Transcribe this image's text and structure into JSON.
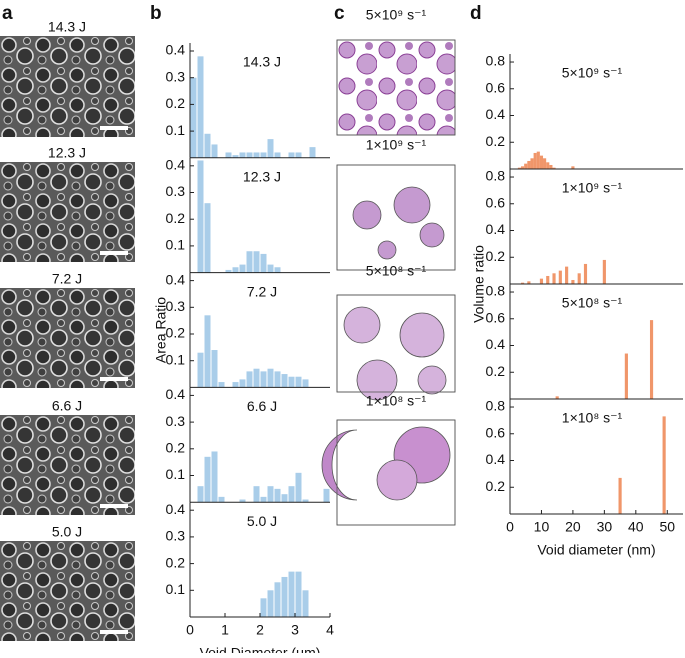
{
  "panel_labels": [
    "a",
    "b",
    "c",
    "d"
  ],
  "micrographs": [
    "14.3 J",
    "12.3 J",
    "7.2 J",
    "6.6 J",
    "5.0 J"
  ],
  "renderings": [
    "5×10⁹ s⁻¹",
    "1×10⁹ s⁻¹",
    "5×10⁸ s⁻¹",
    "1×10⁸ s⁻¹"
  ],
  "chart_data": [
    {
      "type": "histogram",
      "title": "14.3 J",
      "color": "#a9cde9",
      "bins": [
        0,
        0.2,
        0.4,
        0.6,
        0.8,
        1,
        1.2,
        1.4,
        1.6,
        1.8,
        2,
        2.2,
        2.4,
        2.6,
        2.8,
        3,
        3.2,
        3.4,
        3.6,
        3.8,
        4
      ],
      "values": [
        0.3,
        0.38,
        0.09,
        0.05,
        0,
        0.02,
        0.01,
        0.02,
        0.02,
        0.02,
        0.02,
        0.07,
        0.02,
        0,
        0.02,
        0.02,
        0,
        0.04,
        0,
        0
      ],
      "xlim": [
        0,
        4
      ],
      "ylim": [
        0,
        0.43
      ],
      "yticks": [
        0.1,
        0.2,
        0.3,
        0.4
      ]
    },
    {
      "type": "histogram",
      "title": "12.3 J",
      "color": "#a9cde9",
      "bins": [
        0,
        0.2,
        0.4,
        0.6,
        0.8,
        1,
        1.2,
        1.4,
        1.6,
        1.8,
        2,
        2.2,
        2.4,
        2.6,
        2.8,
        3,
        3.2,
        3.4,
        3.6,
        3.8,
        4
      ],
      "values": [
        0,
        0.42,
        0.26,
        0,
        0,
        0.01,
        0.02,
        0.03,
        0.08,
        0.08,
        0.07,
        0.03,
        0.02,
        0,
        0,
        0,
        0,
        0,
        0,
        0
      ],
      "xlim": [
        0,
        4
      ],
      "ylim": [
        0,
        0.43
      ],
      "yticks": [
        0.1,
        0.2,
        0.3,
        0.4
      ]
    },
    {
      "type": "histogram",
      "title": "7.2 J",
      "color": "#a9cde9",
      "bins": [
        0,
        0.2,
        0.4,
        0.6,
        0.8,
        1,
        1.2,
        1.4,
        1.6,
        1.8,
        2,
        2.2,
        2.4,
        2.6,
        2.8,
        3,
        3.2,
        3.4,
        3.6,
        3.8,
        4
      ],
      "values": [
        0,
        0.13,
        0.27,
        0.14,
        0.02,
        0,
        0.02,
        0.03,
        0.06,
        0.07,
        0.06,
        0.07,
        0.06,
        0.05,
        0.04,
        0.04,
        0.03,
        0,
        0,
        0
      ],
      "xlim": [
        0,
        4
      ],
      "ylim": [
        0,
        0.43
      ],
      "yticks": [
        0.1,
        0.2,
        0.3,
        0.4
      ],
      "ylabel": "Area Ratio"
    },
    {
      "type": "histogram",
      "title": "6.6 J",
      "color": "#a9cde9",
      "bins": [
        0,
        0.2,
        0.4,
        0.6,
        0.8,
        1,
        1.2,
        1.4,
        1.6,
        1.8,
        2,
        2.2,
        2.4,
        2.6,
        2.8,
        3,
        3.2,
        3.4,
        3.6,
        3.8,
        4
      ],
      "values": [
        0,
        0.06,
        0.17,
        0.19,
        0.02,
        0,
        0,
        0.01,
        0,
        0.06,
        0.02,
        0.06,
        0.05,
        0.03,
        0.06,
        0.11,
        0.01,
        0,
        0,
        0.05
      ],
      "xlim": [
        0,
        4
      ],
      "ylim": [
        0,
        0.43
      ],
      "yticks": [
        0.1,
        0.2,
        0.3,
        0.4
      ]
    },
    {
      "type": "histogram",
      "title": "5.0 J",
      "color": "#a9cde9",
      "bins": [
        0,
        0.2,
        0.4,
        0.6,
        0.8,
        1,
        1.2,
        1.4,
        1.6,
        1.8,
        2,
        2.2,
        2.4,
        2.6,
        2.8,
        3,
        3.2,
        3.4,
        3.6,
        3.8,
        4
      ],
      "values": [
        0,
        0,
        0,
        0,
        0,
        0,
        0,
        0,
        0,
        0,
        0.07,
        0.1,
        0.13,
        0.15,
        0.17,
        0.17,
        0.1,
        0,
        0,
        0
      ],
      "xlim": [
        0,
        4
      ],
      "ylim": [
        0,
        0.43
      ],
      "yticks": [
        0.1,
        0.2,
        0.3,
        0.4
      ],
      "xticks": [
        0,
        1,
        2,
        3,
        4
      ],
      "xlabel": "Void Diameter (μm)"
    },
    {
      "type": "bar",
      "title": "5×10⁹ s⁻¹",
      "color": "#f0966a",
      "bar_width": 1,
      "x": [
        3,
        4,
        5,
        6,
        7,
        8,
        9,
        10,
        11,
        12,
        13,
        14,
        20
      ],
      "values": [
        0.01,
        0.02,
        0.04,
        0.06,
        0.08,
        0.12,
        0.13,
        0.1,
        0.08,
        0.05,
        0.03,
        0.01,
        0.02
      ],
      "xlim": [
        0,
        55
      ],
      "ylim": [
        0,
        0.86
      ],
      "yticks": [
        0.2,
        0.4,
        0.6,
        0.8
      ]
    },
    {
      "type": "bar",
      "title": "1×10⁹ s⁻¹",
      "color": "#f0966a",
      "bar_width": 1,
      "x": [
        4,
        6,
        10,
        12,
        14,
        16,
        18,
        20,
        22,
        24,
        30
      ],
      "values": [
        0.01,
        0.02,
        0.04,
        0.06,
        0.08,
        0.1,
        0.13,
        0.03,
        0.08,
        0.15,
        0.18
      ],
      "xlim": [
        0,
        55
      ],
      "ylim": [
        0,
        0.86
      ],
      "yticks": [
        0.2,
        0.4,
        0.6,
        0.8
      ],
      "ylabel": "Volume ratio"
    },
    {
      "type": "bar",
      "title": "5×10⁸ s⁻¹",
      "color": "#f0966a",
      "bar_width": 1,
      "x": [
        15,
        37,
        45
      ],
      "values": [
        0.02,
        0.34,
        0.59
      ],
      "xlim": [
        0,
        55
      ],
      "ylim": [
        0,
        0.86
      ],
      "yticks": [
        0.2,
        0.4,
        0.6,
        0.8
      ]
    },
    {
      "type": "bar",
      "title": "1×10⁸ s⁻¹",
      "color": "#f0966a",
      "bar_width": 1,
      "x": [
        35,
        49
      ],
      "values": [
        0.27,
        0.73
      ],
      "xlim": [
        0,
        55
      ],
      "ylim": [
        0,
        0.86
      ],
      "yticks": [
        0.2,
        0.4,
        0.6,
        0.8
      ],
      "xticks": [
        0,
        10,
        20,
        30,
        40,
        50
      ],
      "xlabel": "Void diameter (nm)"
    }
  ]
}
